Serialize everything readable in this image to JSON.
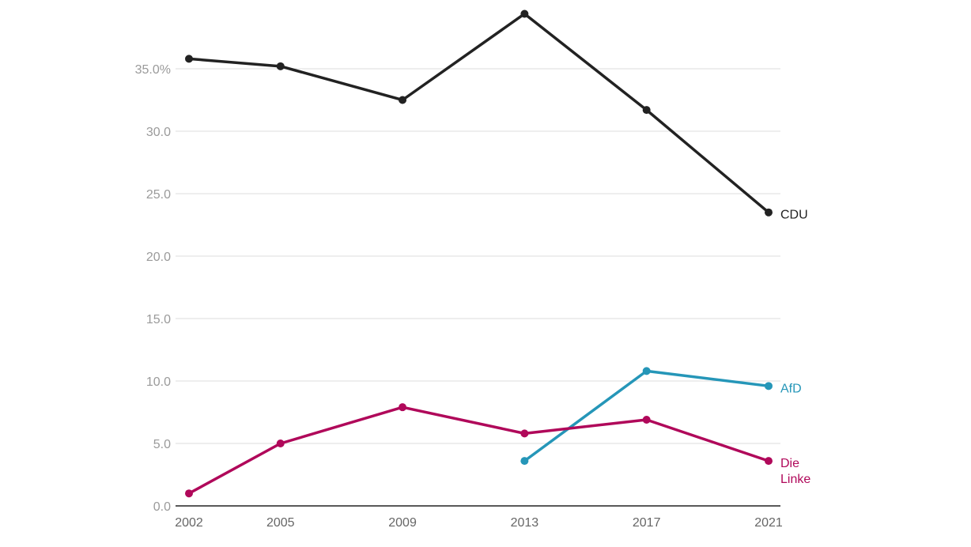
{
  "chart_data": {
    "type": "line",
    "x": [
      "2002",
      "2005",
      "2009",
      "2013",
      "2017",
      "2021"
    ],
    "ylim": [
      0,
      40
    ],
    "yticks": [
      0,
      5,
      10,
      15,
      20,
      25,
      30,
      35
    ],
    "ytick_labels": [
      "0.0",
      "5.0",
      "10.0",
      "15.0",
      "20.0",
      "25.0",
      "30.0",
      "35.0%"
    ],
    "grid": true,
    "legend": "direct labels at line ends",
    "series": [
      {
        "name": "CDU",
        "label_lines": [
          "CDU"
        ],
        "color": "#222222",
        "values": [
          35.8,
          35.2,
          32.5,
          39.4,
          31.7,
          23.5
        ]
      },
      {
        "name": "AfD",
        "label_lines": [
          "AfD"
        ],
        "color": "#2596b8",
        "values": [
          null,
          null,
          null,
          3.6,
          10.8,
          9.6
        ]
      },
      {
        "name": "Die Linke",
        "label_lines": [
          "Die",
          "Linke"
        ],
        "color": "#b0085a",
        "values": [
          1.0,
          5.0,
          7.9,
          5.8,
          6.9,
          3.6
        ]
      }
    ]
  }
}
